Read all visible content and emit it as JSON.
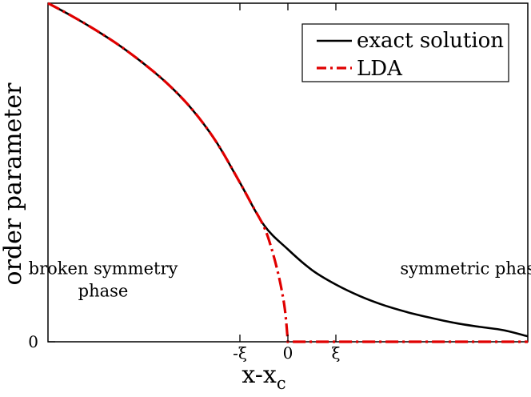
{
  "chart_data": {
    "type": "line",
    "title": "",
    "xlabel_main": "x-x",
    "xlabel_sub": "c",
    "ylabel": "order parameter",
    "xlim": [
      -5,
      5
    ],
    "ylim": [
      0,
      1
    ],
    "x_ticks": [
      {
        "value": -1,
        "label": "-ξ"
      },
      {
        "value": 0,
        "label": "0"
      },
      {
        "value": 1,
        "label": "ξ"
      }
    ],
    "y_ticks": [
      {
        "value": 0,
        "label": "0"
      }
    ],
    "grid": false,
    "legend": {
      "position": "top-right",
      "entries": [
        {
          "label": "exact solution",
          "color": "#000000",
          "dash": "solid"
        },
        {
          "label": "LDA",
          "color": "#e00000",
          "dash": "dashdot"
        }
      ]
    },
    "annotations": [
      {
        "lines": [
          "broken symmetry",
          "phase"
        ],
        "x": -3.85,
        "y": 0.19
      },
      {
        "lines": [
          "symmetric phase"
        ],
        "x": 3.85,
        "y": 0.19
      }
    ],
    "series": [
      {
        "name": "exact solution",
        "color": "#000000",
        "x": [
          -5,
          -4.5,
          -4,
          -3.5,
          -3,
          -2.5,
          -2,
          -1.5,
          -1,
          -0.5,
          0,
          0.5,
          1,
          1.5,
          2,
          2.5,
          3,
          3.5,
          4,
          4.5,
          5
        ],
        "y": [
          1.0,
          0.962,
          0.92,
          0.874,
          0.821,
          0.761,
          0.687,
          0.592,
          0.47,
          0.345,
          0.273,
          0.212,
          0.169,
          0.135,
          0.108,
          0.087,
          0.07,
          0.055,
          0.044,
          0.034,
          0.016
        ]
      },
      {
        "name": "LDA",
        "color": "#e00000",
        "x": [
          -5,
          -4.5,
          -4,
          -3.5,
          -3,
          -2.5,
          -2,
          -1.5,
          -1,
          -0.75,
          -0.5,
          -0.35,
          -0.2,
          -0.1,
          -0.05,
          0,
          0.5,
          1,
          2,
          3,
          4,
          5
        ],
        "y": [
          1.0,
          0.962,
          0.92,
          0.874,
          0.821,
          0.761,
          0.687,
          0.592,
          0.47,
          0.405,
          0.34,
          0.28,
          0.2,
          0.13,
          0.08,
          0,
          0,
          0,
          0,
          0,
          0,
          0
        ]
      }
    ]
  }
}
